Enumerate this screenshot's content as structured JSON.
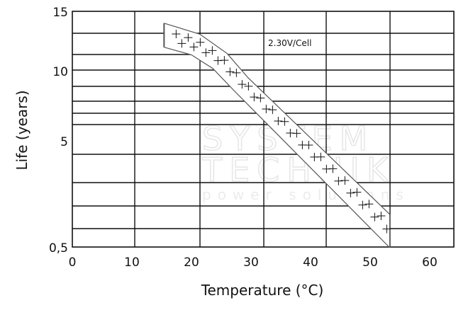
{
  "chart_data": {
    "type": "area",
    "title": "",
    "xlabel": "Temperature (°C)",
    "ylabel": "Life (years)",
    "xlim": [
      0,
      64
    ],
    "ylim": [
      0.5,
      15
    ],
    "y_scale": "log",
    "x_ticks": [
      "0",
      "10",
      "20",
      "30",
      "40",
      "50",
      "60"
    ],
    "y_ticks": [
      "0,5",
      "5",
      "10",
      "15"
    ],
    "grid": true,
    "annotation": "2.30V/Cell",
    "band": {
      "upper": [
        [
          15.4,
          13.9
        ],
        [
          21.4,
          12.9
        ],
        [
          26.0,
          11.3
        ],
        [
          29.5,
          9.4
        ],
        [
          53.3,
          1.03
        ]
      ],
      "lower": [
        [
          15.4,
          11.8
        ],
        [
          20.0,
          11.2
        ],
        [
          23.6,
          10.2
        ],
        [
          27.1,
          8.3
        ],
        [
          53.3,
          0.5
        ]
      ]
    },
    "band_fill": "#ffffff",
    "band_stroke": "#555555"
  },
  "watermark": {
    "line1": "SYSTEM",
    "line2": "TECHNIK",
    "line3": "power solutions"
  }
}
